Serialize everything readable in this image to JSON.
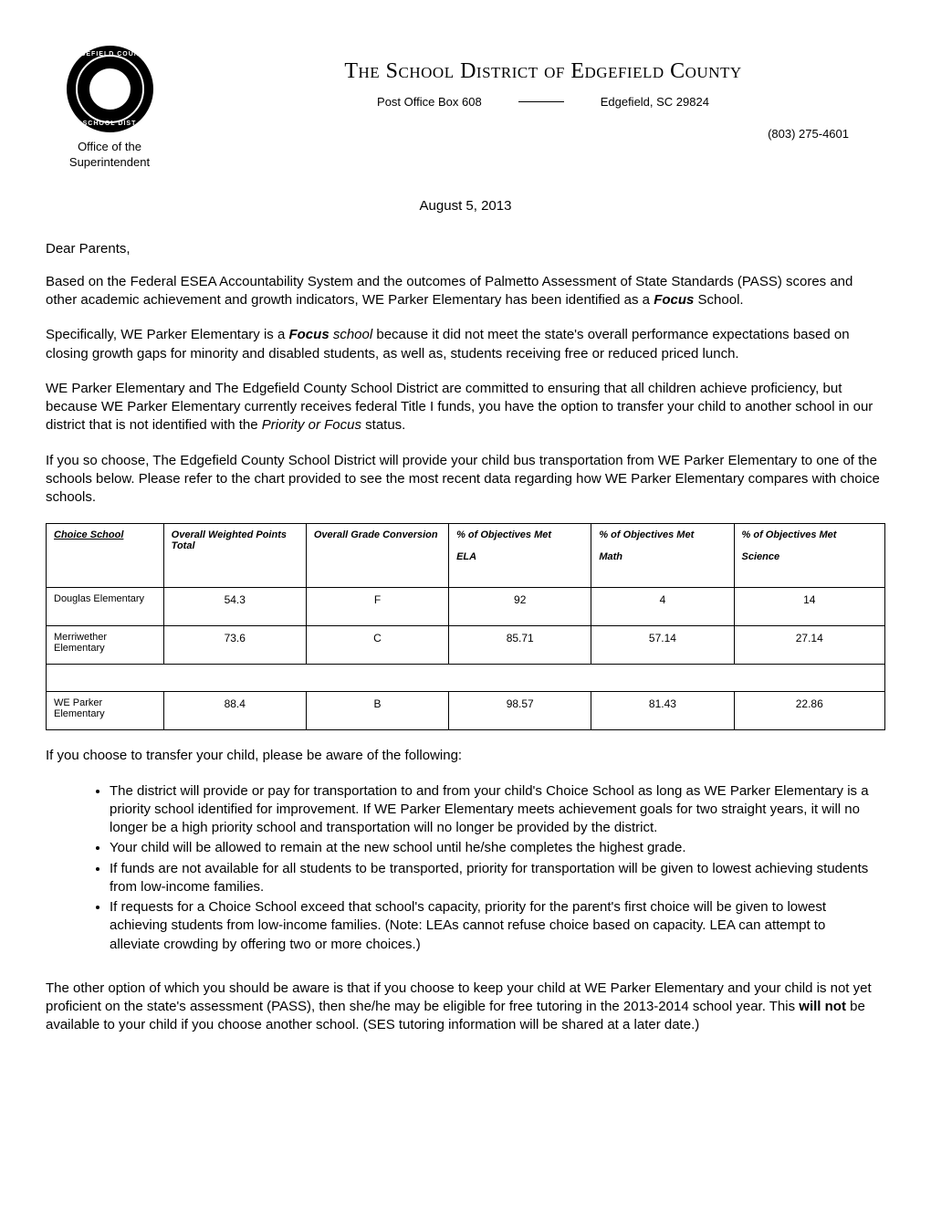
{
  "header": {
    "seal_top": "EDGEFIELD COUNTY",
    "seal_bottom": "SCHOOL DIST",
    "office_label_1": "Office of the",
    "office_label_2": "Superintendent",
    "district_title": "The School District of Edgefield County",
    "address_left": "Post Office Box 608",
    "address_right": "Edgefield, SC 29824",
    "phone": "(803) 275-4601"
  },
  "date": "August 5, 2013",
  "salutation": "Dear Parents,",
  "p1_a": "Based on the Federal ESEA Accountability System and the outcomes of Palmetto Assessment of State Standards (PASS) scores and other academic achievement and growth indicators, WE Parker Elementary has been identified as a ",
  "p1_b": "Focus",
  "p1_c": " School.",
  "p2_a": "Specifically, WE Parker Elementary is a ",
  "p2_b": "Focus",
  "p2_c": " school",
  "p2_d": " because it did not meet the state's overall performance expectations based on closing growth gaps for minority and disabled students, as well as, students receiving free or reduced priced lunch.",
  "p3_a": "WE Parker Elementary and The Edgefield County School District are committed to ensuring that all children achieve proficiency, but because WE Parker Elementary currently receives federal Title I funds, you have the option to transfer your child to another school in our district that is not identified with the ",
  "p3_b": "Priority or Focus",
  "p3_c": " status.",
  "p4": "If you so choose, The Edgefield County School District will provide your child bus transportation from WE Parker Elementary to one of the schools below.  Please refer to the chart provided to see the most recent data regarding how WE Parker Elementary compares with choice schools.",
  "table": {
    "headers": {
      "school": "Choice School ",
      "points": "Overall Weighted Points Total",
      "grade": "Overall Grade Conversion",
      "ela_1": "% of Objectives Met",
      "ela_2": "ELA",
      "math_1": "% of Objectives Met",
      "math_2": "Math",
      "sci_1": "% of Objectives Met",
      "sci_2": "Science"
    },
    "rows": [
      {
        "school": "Douglas Elementary",
        "points": "54.3",
        "grade": "F",
        "ela": "92",
        "math": "4",
        "sci": "14"
      },
      {
        "school": "Merriwether Elementary",
        "points": "73.6",
        "grade": "C",
        "ela": "85.71",
        "math": "57.14",
        "sci": "27.14"
      },
      {
        "school": "WE Parker Elementary",
        "points": "88.4",
        "grade": "B",
        "ela": "98.57",
        "math": "81.43",
        "sci": "22.86"
      }
    ]
  },
  "p5": "If you choose to transfer your child, please be aware of the following:",
  "bullets": {
    "b1": "The district will provide or pay for transportation to and from your child's Choice School as long as WE Parker Elementary is a priority school identified for improvement.  If WE Parker Elementary meets achievement goals for two straight years, it will no longer be a high priority school and transportation will no longer be provided by the district.",
    "b2": "Your child will be allowed to remain at the new school until he/she completes the highest grade.",
    "b3": "If funds are not available for all students to be transported, priority for transportation will be given to lowest achieving students from low-income families.",
    "b4_a": "If requests for a Choice School exceed that school's capacity, priority for the parent's first choice will be given to lowest achieving students from low-income families. (Note",
    "b4_b": ":",
    "b4_c": " LEAs cannot refuse choice based on capacity. LEA can attempt to alleviate crowding by offering two or more choices.)"
  },
  "p6_a": "The other option of which you should be aware is that if you choose to keep your child at WE Parker Elementary and your child is not yet proficient on the state's assessment (PASS), then she/he may be eligible for free tutoring in the 2013-2014 school year.  This ",
  "p6_b": "will not",
  "p6_c": " be available to your child if you choose another school. (SES tutoring information will be shared at a later date.)"
}
